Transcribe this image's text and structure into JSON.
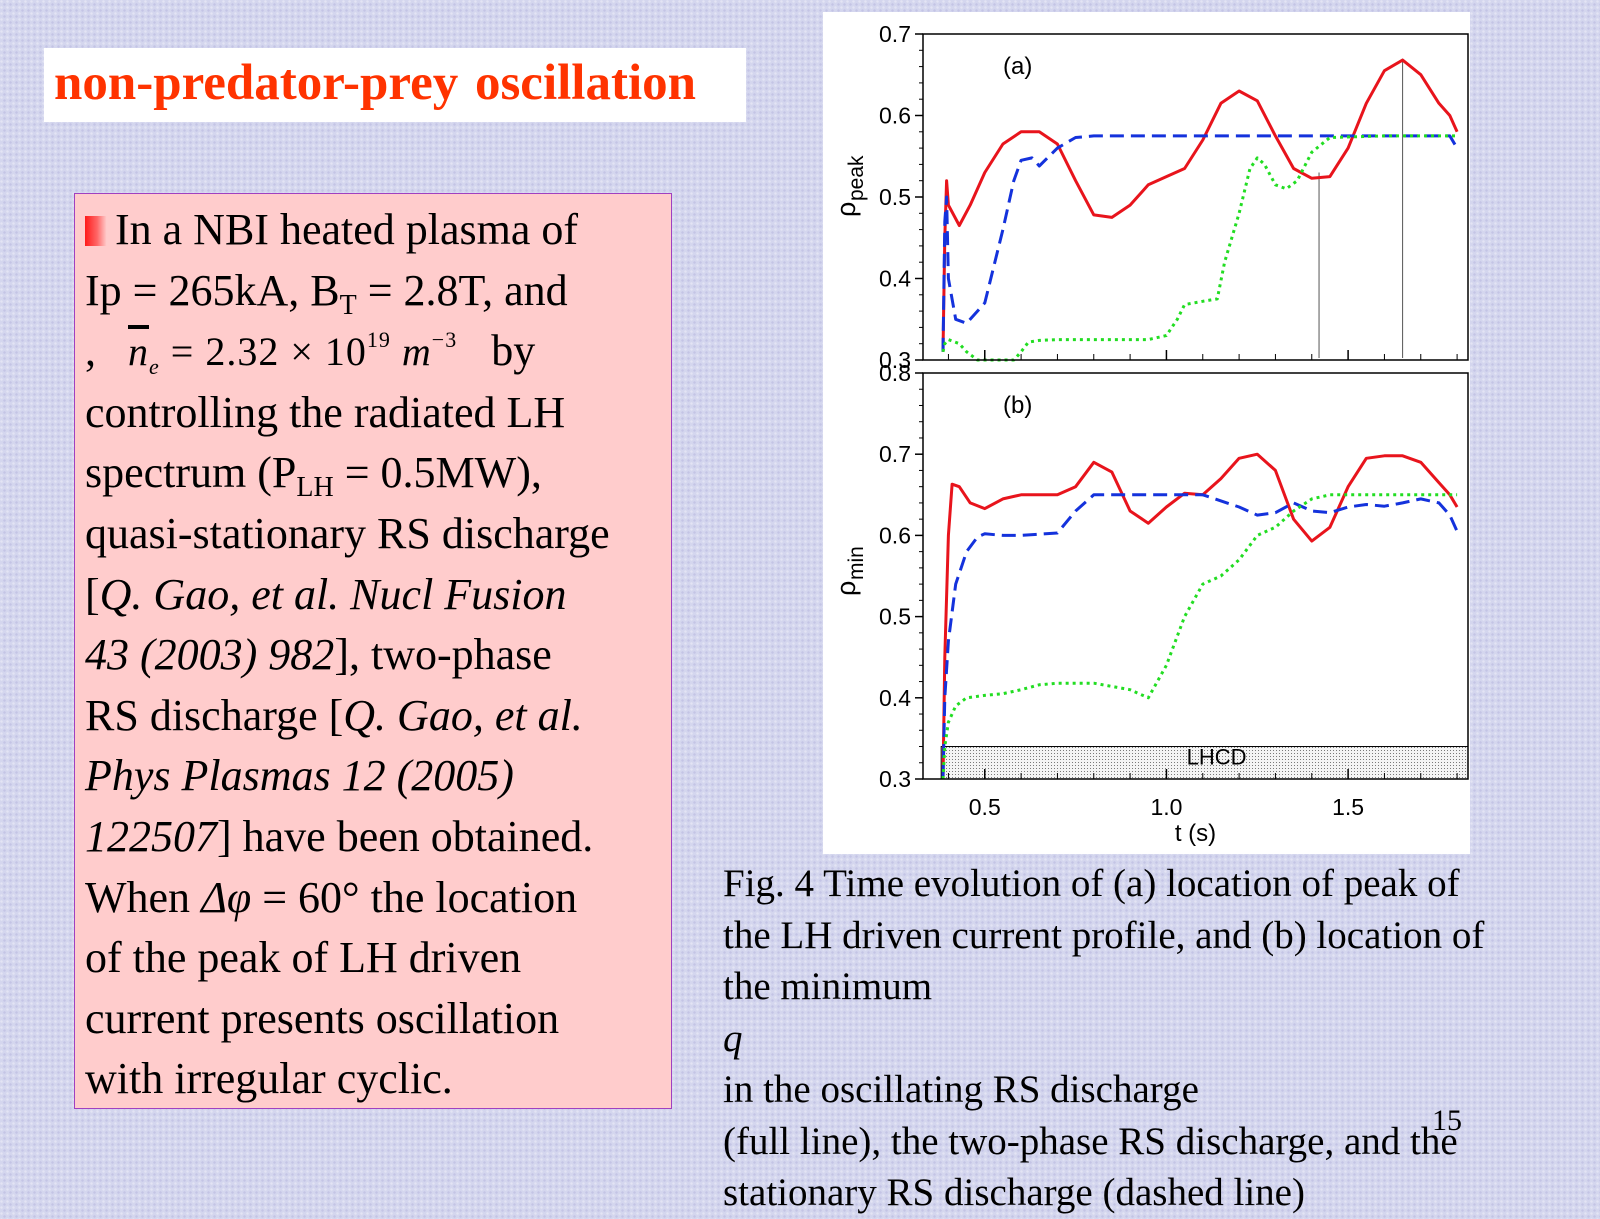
{
  "slide": {
    "title": "non-predator-prey oscillation",
    "page_number": "15",
    "body": {
      "l1": "In a NBI heated plasma of",
      "l2a": "Ip = 265kA, B",
      "l2sub": "T",
      "l2b": " = 2.8T, and",
      "l3a": ",",
      "l3formula_a": "n",
      "l3formula_sub": "e",
      "l3formula_b": " = 2.32 × 10",
      "l3formula_sup1": "19",
      "l3formula_c": " m",
      "l3formula_sup2": "−3",
      "l3b": "by",
      "l4": "controlling the radiated LH",
      "l5a": "spectrum (P",
      "l5sub": "LH",
      "l5b": " = 0.5MW),",
      "l6": "quasi-stationary RS discharge",
      "l7a": "[",
      "l7i": "Q. Gao, et al. Nucl Fusion",
      "l8i": "43 (2003) 982",
      "l8b": "], two-phase",
      "l9a": "RS discharge [",
      "l9i": "Q. Gao, et al.",
      "l10i": "Phys Plasmas 12 (2005)",
      "l11i": "122507",
      "l11b": "] have been obtained.",
      "l12a": "When ",
      "l12i": "Δφ",
      "l12b": " = 60° the location",
      "l13": "of the peak of LH driven",
      "l14": "current presents oscillation",
      "l15": "with irregular cyclic."
    },
    "caption": {
      "l1": "Fig. 4 Time evolution of (a) location of peak of",
      "l2": "the LH driven current profile, and (b) location of",
      "l3a": "the minimum ",
      "l3i": "q",
      "l3b": " in the oscillating RS discharge",
      "l4": "(full line), the two-phase RS discharge, and the",
      "l5": "stationary RS discharge (dashed line)"
    },
    "colors": {
      "title": "#ff3300",
      "text_box_bg": "#ffcccc",
      "oscillating": "#e8141c",
      "stationary": "#1432dc",
      "two_phase": "#22dd22"
    }
  },
  "chart_data": [
    {
      "type": "line",
      "panel_label": "(a)",
      "ylabel": "ρ",
      "ylabel_sub": "peak",
      "xlim": [
        0.33,
        1.83
      ],
      "ylim": [
        0.3,
        0.7
      ],
      "yticks": [
        "0.3",
        "0.4",
        "0.5",
        "0.6",
        "0.7"
      ],
      "vertical_markers_x": [
        1.42,
        1.65
      ],
      "series": [
        {
          "style": "solid",
          "color": "#e8141c",
          "x": [
            0.385,
            0.39,
            0.395,
            0.4,
            0.43,
            0.46,
            0.5,
            0.55,
            0.6,
            0.65,
            0.7,
            0.75,
            0.8,
            0.85,
            0.9,
            0.95,
            1.0,
            1.05,
            1.1,
            1.15,
            1.2,
            1.25,
            1.3,
            1.35,
            1.4,
            1.45,
            1.5,
            1.55,
            1.6,
            1.65,
            1.7,
            1.75,
            1.78,
            1.8
          ],
          "y": [
            0.31,
            0.45,
            0.52,
            0.49,
            0.465,
            0.49,
            0.53,
            0.565,
            0.58,
            0.58,
            0.565,
            0.52,
            0.478,
            0.475,
            0.49,
            0.515,
            0.525,
            0.535,
            0.57,
            0.615,
            0.63,
            0.618,
            0.575,
            0.535,
            0.523,
            0.525,
            0.56,
            0.615,
            0.655,
            0.668,
            0.65,
            0.615,
            0.6,
            0.58
          ]
        },
        {
          "style": "dashed",
          "color": "#1432dc",
          "x": [
            0.385,
            0.39,
            0.395,
            0.4,
            0.42,
            0.45,
            0.5,
            0.55,
            0.58,
            0.6,
            0.63,
            0.65,
            0.7,
            0.75,
            0.8,
            1.0,
            1.4,
            1.78,
            1.8
          ],
          "y": [
            0.31,
            0.47,
            0.5,
            0.4,
            0.35,
            0.345,
            0.37,
            0.46,
            0.52,
            0.545,
            0.548,
            0.538,
            0.56,
            0.573,
            0.575,
            0.575,
            0.575,
            0.575,
            0.56
          ]
        },
        {
          "style": "dotted",
          "color": "#22dd22",
          "x": [
            0.385,
            0.39,
            0.4,
            0.43,
            0.45,
            0.48,
            0.5,
            0.58,
            0.6,
            0.62,
            0.65,
            0.7,
            0.8,
            0.9,
            0.95,
            1.0,
            1.03,
            1.05,
            1.1,
            1.14,
            1.16,
            1.2,
            1.23,
            1.25,
            1.27,
            1.3,
            1.33,
            1.36,
            1.4,
            1.45,
            1.6,
            1.8
          ],
          "y": [
            0.31,
            0.32,
            0.325,
            0.32,
            0.31,
            0.3,
            0.3,
            0.3,
            0.31,
            0.322,
            0.324,
            0.325,
            0.325,
            0.325,
            0.325,
            0.33,
            0.35,
            0.368,
            0.372,
            0.375,
            0.42,
            0.48,
            0.535,
            0.548,
            0.54,
            0.515,
            0.51,
            0.52,
            0.555,
            0.573,
            0.575,
            0.575
          ]
        }
      ]
    },
    {
      "type": "line",
      "panel_label": "(b)",
      "xlabel": "t (s)",
      "ylabel": "ρ",
      "ylabel_sub": "min",
      "xlim": [
        0.33,
        1.83
      ],
      "ylim": [
        0.3,
        0.8
      ],
      "xticks": [
        "0.5",
        "1.0",
        "1.5"
      ],
      "yticks": [
        "0.3",
        "0.4",
        "0.5",
        "0.6",
        "0.7",
        "0.8"
      ],
      "annotation": {
        "label": "LHCD",
        "x_start": 0.38,
        "x_end": 1.83,
        "y_start": 0.3,
        "y_end": 0.34
      },
      "series": [
        {
          "style": "solid",
          "color": "#e8141c",
          "x": [
            0.385,
            0.39,
            0.4,
            0.41,
            0.43,
            0.46,
            0.5,
            0.55,
            0.6,
            0.65,
            0.7,
            0.75,
            0.8,
            0.85,
            0.9,
            0.95,
            1.0,
            1.05,
            1.1,
            1.15,
            1.2,
            1.25,
            1.3,
            1.35,
            1.4,
            1.45,
            1.5,
            1.55,
            1.6,
            1.65,
            1.7,
            1.75,
            1.78,
            1.8
          ],
          "y": [
            0.3,
            0.45,
            0.6,
            0.663,
            0.66,
            0.64,
            0.633,
            0.645,
            0.65,
            0.65,
            0.65,
            0.66,
            0.69,
            0.678,
            0.63,
            0.615,
            0.635,
            0.652,
            0.65,
            0.67,
            0.695,
            0.7,
            0.68,
            0.62,
            0.593,
            0.61,
            0.66,
            0.695,
            0.698,
            0.698,
            0.69,
            0.665,
            0.65,
            0.635
          ]
        },
        {
          "style": "dashed",
          "color": "#1432dc",
          "x": [
            0.385,
            0.39,
            0.4,
            0.42,
            0.45,
            0.48,
            0.5,
            0.55,
            0.6,
            0.7,
            0.75,
            0.8,
            0.85,
            0.9,
            1.0,
            1.1,
            1.2,
            1.25,
            1.3,
            1.35,
            1.4,
            1.45,
            1.5,
            1.55,
            1.6,
            1.65,
            1.7,
            1.75,
            1.78,
            1.8
          ],
          "y": [
            0.3,
            0.4,
            0.47,
            0.54,
            0.58,
            0.598,
            0.602,
            0.6,
            0.6,
            0.603,
            0.63,
            0.65,
            0.65,
            0.65,
            0.65,
            0.65,
            0.635,
            0.625,
            0.628,
            0.64,
            0.63,
            0.628,
            0.635,
            0.638,
            0.636,
            0.64,
            0.645,
            0.64,
            0.625,
            0.605
          ]
        },
        {
          "style": "dotted",
          "color": "#22dd22",
          "x": [
            0.385,
            0.39,
            0.4,
            0.42,
            0.45,
            0.5,
            0.55,
            0.6,
            0.65,
            0.7,
            0.8,
            0.9,
            0.95,
            1.0,
            1.05,
            1.1,
            1.15,
            1.2,
            1.25,
            1.3,
            1.35,
            1.4,
            1.45,
            1.5,
            1.6,
            1.7,
            1.8
          ],
          "y": [
            0.3,
            0.34,
            0.37,
            0.39,
            0.4,
            0.403,
            0.405,
            0.41,
            0.416,
            0.418,
            0.418,
            0.41,
            0.4,
            0.44,
            0.5,
            0.54,
            0.55,
            0.57,
            0.6,
            0.61,
            0.63,
            0.645,
            0.65,
            0.65,
            0.65,
            0.65,
            0.65
          ]
        }
      ]
    }
  ]
}
